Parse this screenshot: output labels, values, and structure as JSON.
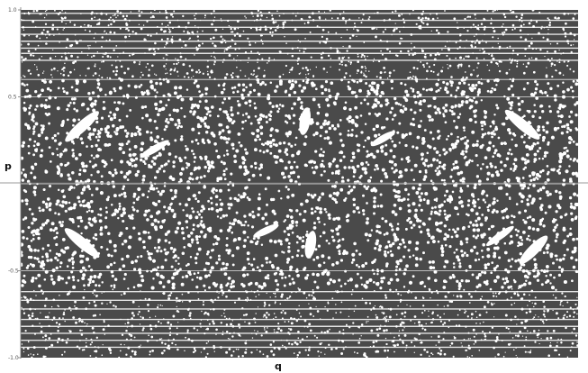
{
  "chart_data": {
    "type": "scatter",
    "title": "",
    "xlabel": "q",
    "ylabel": "p",
    "xlim": [
      -1.0,
      1.0
    ],
    "ylim": [
      -1.0,
      1.0
    ],
    "y_ticks": [
      {
        "value": 1.0,
        "label": "1.0"
      },
      {
        "value": 0.5,
        "label": "0.5"
      },
      {
        "value": -0.5,
        "label": "-0.5"
      },
      {
        "value": -1.0,
        "label": "-1.0"
      }
    ],
    "series": [
      {
        "color": "#3a3a3a",
        "marker": "dot",
        "description_points": "dense stochastic sea of points filling the (q, p) phase plane",
        "islands": [
          {
            "q": -0.78,
            "p": 0.33,
            "length": 0.16,
            "angle_deg": 42,
            "width": 0.03
          },
          {
            "q": -0.52,
            "p": 0.2,
            "length": 0.12,
            "angle_deg": 30,
            "width": 0.02
          },
          {
            "q": 0.02,
            "p": 0.36,
            "length": 0.1,
            "angle_deg": 80,
            "width": 0.03
          },
          {
            "q": 0.3,
            "p": 0.26,
            "length": 0.1,
            "angle_deg": 30,
            "width": 0.02
          },
          {
            "q": 0.8,
            "p": 0.34,
            "length": 0.16,
            "angle_deg": -40,
            "width": 0.03
          },
          {
            "q": -0.78,
            "p": -0.34,
            "length": 0.16,
            "angle_deg": -40,
            "width": 0.03
          },
          {
            "q": -0.12,
            "p": -0.27,
            "length": 0.1,
            "angle_deg": 25,
            "width": 0.02
          },
          {
            "q": 0.04,
            "p": -0.35,
            "length": 0.1,
            "angle_deg": 80,
            "width": 0.03
          },
          {
            "q": 0.72,
            "p": -0.3,
            "length": 0.12,
            "angle_deg": 35,
            "width": 0.02
          },
          {
            "q": 0.84,
            "p": -0.38,
            "length": 0.14,
            "angle_deg": 45,
            "width": 0.03
          }
        ],
        "p_gaps": [
          0.98,
          0.94,
          0.9,
          0.86,
          0.82,
          0.78,
          0.75,
          0.71,
          0.6,
          0.5,
          0.0,
          -0.5,
          -0.62,
          -0.67,
          -0.72,
          -0.78,
          -0.82,
          -0.86,
          -0.9,
          -0.94
        ]
      }
    ],
    "grid": false,
    "legend": "none"
  }
}
